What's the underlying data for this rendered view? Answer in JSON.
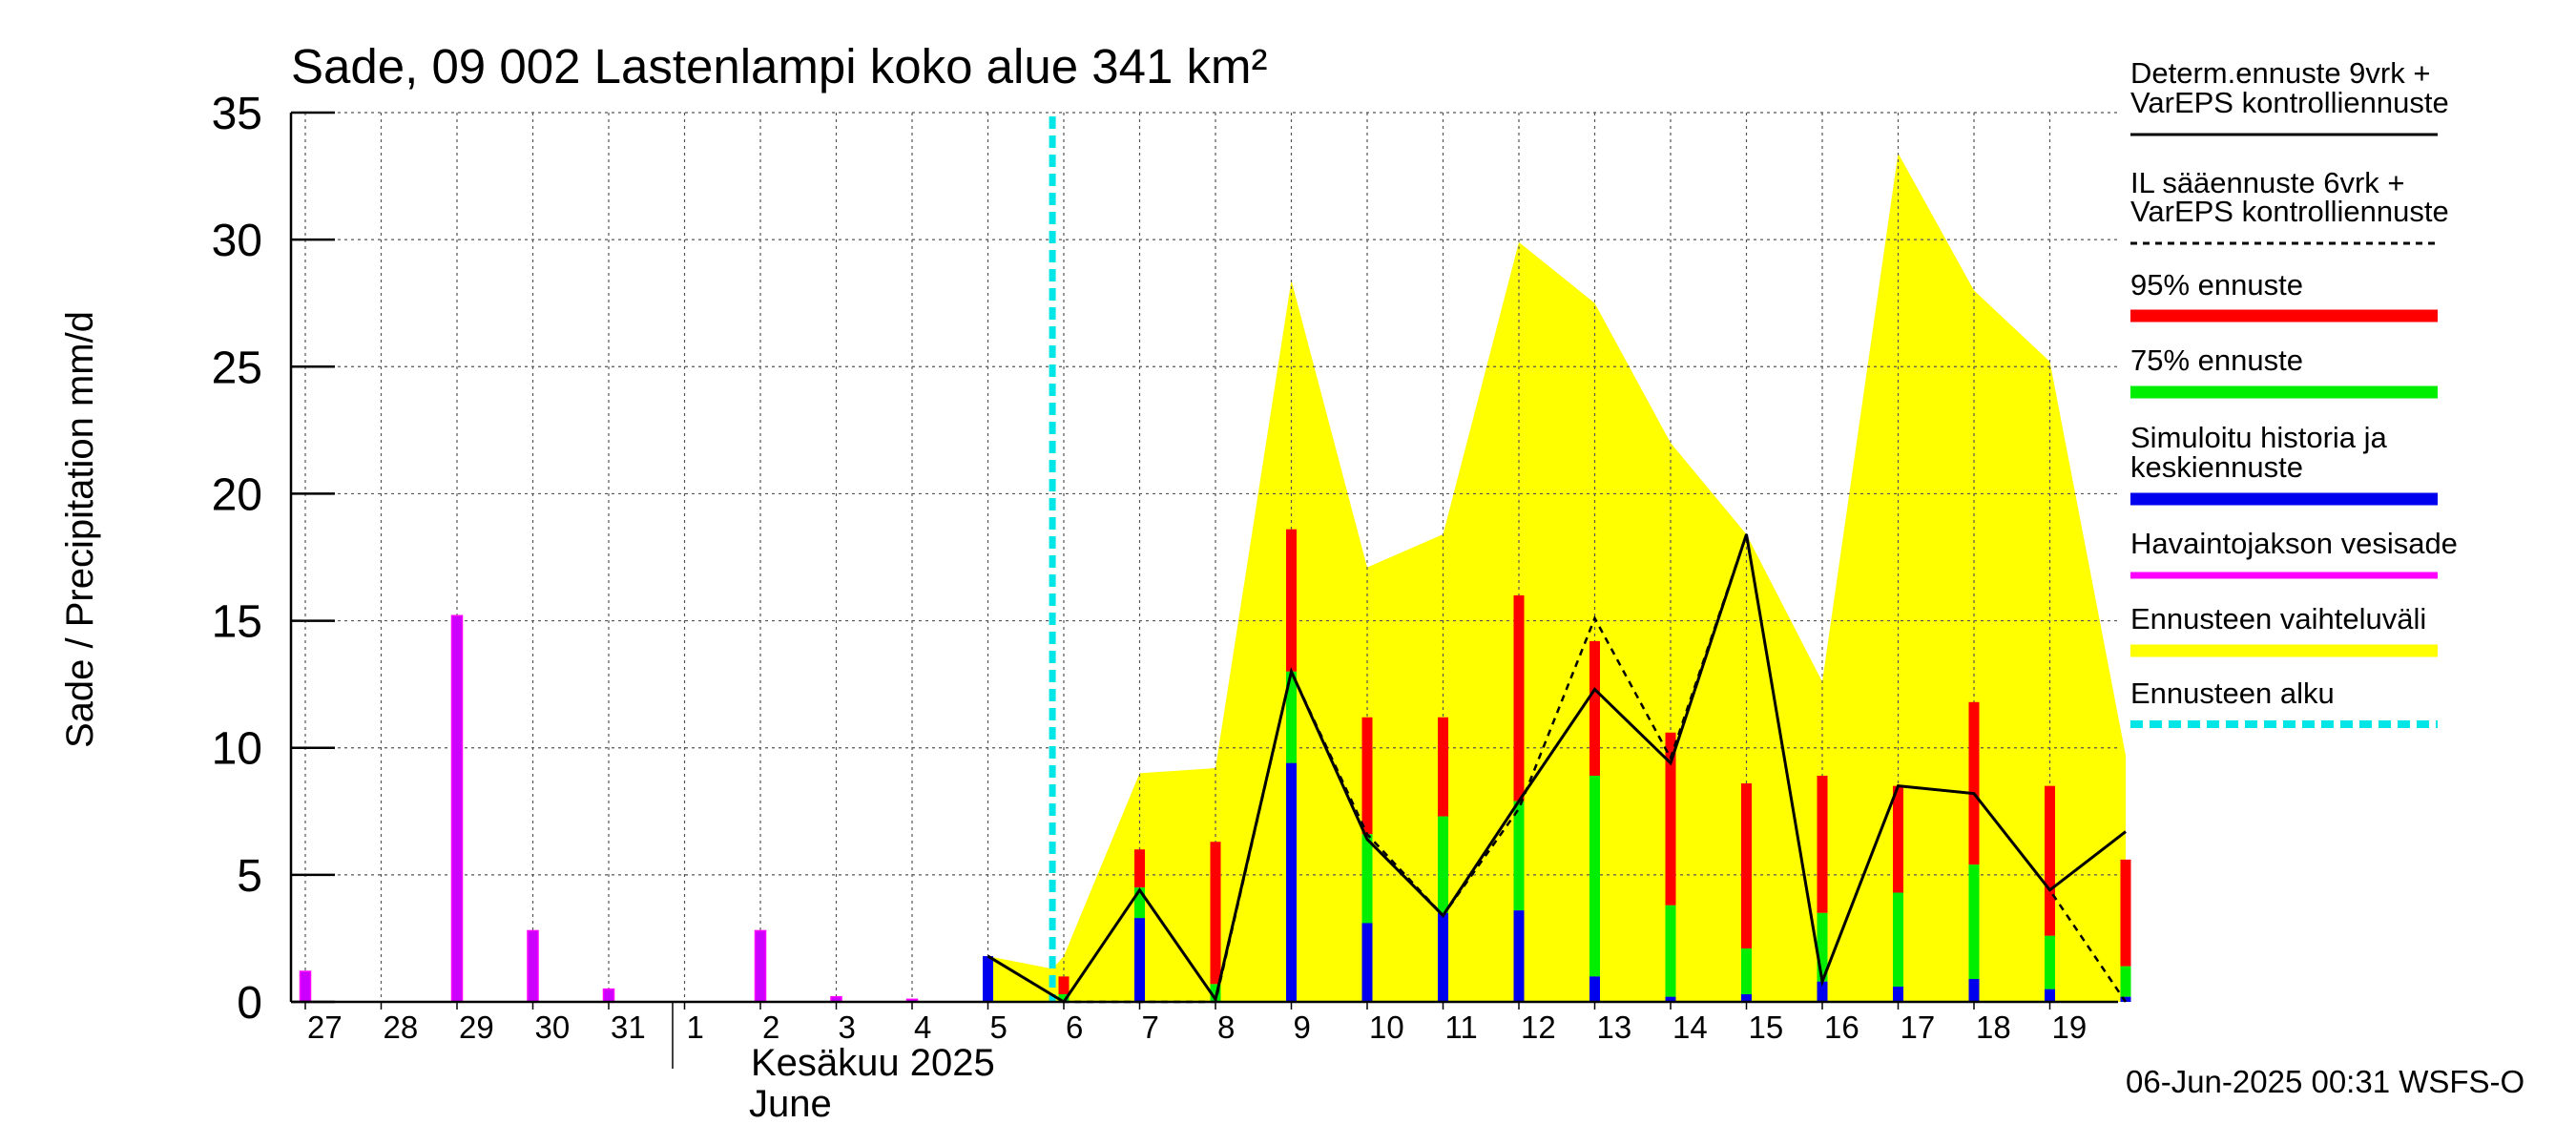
{
  "chart_data": {
    "type": "bar",
    "title": "Sade, 09 002 Lastenlampi koko alue 341 km²",
    "ylabel": "Sade / Precipitation   mm/d",
    "ylim": [
      0,
      35
    ],
    "yticks": [
      0,
      5,
      10,
      15,
      20,
      25,
      30,
      35
    ],
    "grid": true,
    "legend_position": "right",
    "x_day_labels": [
      "27",
      "28",
      "29",
      "30",
      "31",
      "1",
      "2",
      "3",
      "4",
      "5",
      "6",
      "7",
      "8",
      "9",
      "10",
      "11",
      "12",
      "13",
      "14",
      "15",
      "16",
      "17",
      "18",
      "19"
    ],
    "month_label_fi": "Kesäkuu  2025",
    "month_label_en": "June",
    "forecast_start_day": 9.85,
    "observed": {
      "name": "Havaintojakson vesisade",
      "x": [
        0,
        2,
        3,
        4,
        6,
        7,
        8
      ],
      "values": [
        1.2,
        15.2,
        2.8,
        0.5,
        2.8,
        0.2,
        0.1
      ]
    },
    "simulated_history": {
      "name": "Simuloitu historia ja keskiennuste",
      "x": [
        9
      ],
      "values": [
        1.8
      ]
    },
    "forecast_days": [
      10,
      11,
      12,
      13,
      14,
      15,
      16,
      17,
      18,
      19,
      20,
      21,
      22,
      23,
      24
    ],
    "forecast_mean": [
      0.0,
      3.3,
      0.0,
      9.4,
      3.1,
      3.5,
      3.6,
      1.0,
      0.2,
      0.3,
      0.8,
      0.6,
      0.9,
      0.5,
      0.2
    ],
    "forecast_p75": [
      0.3,
      4.5,
      0.7,
      13.0,
      6.6,
      7.3,
      7.9,
      8.9,
      3.8,
      2.1,
      3.5,
      4.3,
      5.4,
      2.6,
      1.4
    ],
    "forecast_p95": [
      1.0,
      6.0,
      6.3,
      18.6,
      11.2,
      11.2,
      16.0,
      14.2,
      10.6,
      8.6,
      8.9,
      8.5,
      11.8,
      8.5,
      5.6
    ],
    "range_upper_x": [
      9,
      9.85,
      10,
      11,
      12,
      13,
      14,
      15,
      16,
      17,
      18,
      19,
      20,
      21,
      22,
      23,
      24
    ],
    "range_upper": [
      1.8,
      1.3,
      1.8,
      9.0,
      9.2,
      28.4,
      17.1,
      18.4,
      29.9,
      27.5,
      22.0,
      18.4,
      12.6,
      33.4,
      28.0,
      25.2,
      9.7
    ],
    "deterministic_x": [
      9,
      10,
      11,
      12,
      13,
      14,
      15,
      16,
      17,
      18,
      19,
      20,
      21,
      22,
      23,
      24
    ],
    "deterministic": [
      1.8,
      0.0,
      4.4,
      0.1,
      13.0,
      6.4,
      3.4,
      7.9,
      12.3,
      9.4,
      18.4,
      0.8,
      8.5,
      8.2,
      4.4,
      6.7
    ],
    "il_forecast_x": [
      9,
      10,
      11,
      12,
      13,
      14,
      15,
      16,
      17,
      18,
      19,
      20,
      21,
      22,
      23,
      24
    ],
    "il_forecast": [
      1.8,
      0.0,
      0.0,
      0.0,
      13.0,
      6.6,
      3.4,
      7.6,
      15.1,
      9.6,
      18.4,
      0.8,
      8.5,
      8.2,
      4.4,
      0.0
    ],
    "legend": [
      {
        "label": "Determ.ennuste 9vrk +",
        "label2": "VarEPS kontrolliennuste",
        "style": "line-solid",
        "color": "#000000"
      },
      {
        "label": "IL sääennuste 6vrk  +",
        "label2": "  VarEPS kontrolliennuste",
        "style": "line-dashed",
        "color": "#000000"
      },
      {
        "label": "95% ennuste",
        "label2": "",
        "style": "thick",
        "color": "#ff0000"
      },
      {
        "label": "75% ennuste",
        "label2": "",
        "style": "thick",
        "color": "#00ee00"
      },
      {
        "label": "Simuloitu historia ja",
        "label2": "keskiennuste",
        "style": "thick",
        "color": "#0000ee"
      },
      {
        "label": "Havaintojakson vesisade",
        "label2": "",
        "style": "medium",
        "color": "#ff00ff"
      },
      {
        "label": "Ennusteen vaihteluväli",
        "label2": "",
        "style": "thick",
        "color": "#ffff00"
      },
      {
        "label": "Ennusteen alku",
        "label2": "",
        "style": "dashed-cyan",
        "color": "#00e5e5"
      }
    ],
    "colors": {
      "observed_bar": "#cc00ff",
      "observed_edge": "#ff00ff",
      "mean": "#0000ee",
      "p75": "#00ee00",
      "p95": "#ff0000",
      "range": "#ffff00",
      "forecast_start": "#00e5e5"
    }
  },
  "footer": "06-Jun-2025 00:31 WSFS-O"
}
